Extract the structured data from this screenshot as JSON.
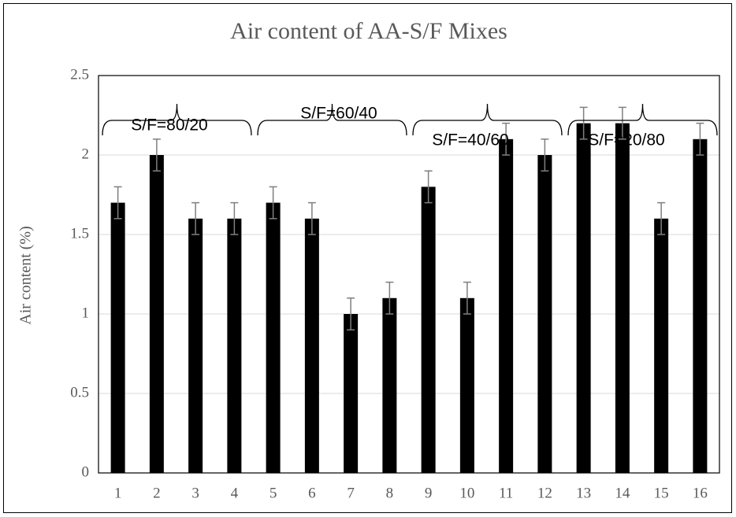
{
  "chart_data": {
    "type": "bar",
    "title": "Air content of AA-S/F Mixes",
    "ylabel": "Air content (%)",
    "categories": [
      "1",
      "2",
      "3",
      "4",
      "5",
      "6",
      "7",
      "8",
      "9",
      "10",
      "11",
      "12",
      "13",
      "14",
      "15",
      "16"
    ],
    "values": [
      1.7,
      2.0,
      1.6,
      1.6,
      1.7,
      1.6,
      1.0,
      1.1,
      1.8,
      1.1,
      2.1,
      2.0,
      2.2,
      2.2,
      1.6,
      2.1
    ],
    "errors": [
      0.1,
      0.1,
      0.1,
      0.1,
      0.1,
      0.1,
      0.1,
      0.1,
      0.1,
      0.1,
      0.1,
      0.1,
      0.1,
      0.1,
      0.1,
      0.1
    ],
    "color": "#000000",
    "error_color": "#7f7f7f",
    "ylim": [
      0,
      2.5
    ],
    "yticks": [
      0,
      0.5,
      1,
      1.5,
      2,
      2.5
    ],
    "grid": true,
    "annotations": [
      "S/F=80/20",
      "S/F=60/40",
      "S/F=40/60",
      "S/F=20/80"
    ]
  }
}
